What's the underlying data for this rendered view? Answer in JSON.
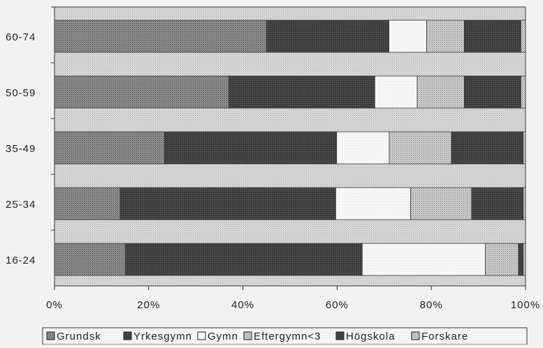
{
  "chart_data": {
    "type": "bar",
    "orientation": "horizontal",
    "stacked": "percent",
    "categories": [
      "60-74",
      "50-59",
      "35-49",
      "25-34",
      "16-24"
    ],
    "series": [
      {
        "name": "Grundsk",
        "values": [
          45,
          37,
          23,
          14,
          15
        ],
        "color": "#7a7a7a",
        "pattern": "dots-dense"
      },
      {
        "name": "Yrkesgymn",
        "values": [
          26,
          31,
          36,
          46,
          50
        ],
        "color": "#4a4a4a",
        "pattern": "dark"
      },
      {
        "name": "Gymn",
        "values": [
          8,
          9,
          11,
          16,
          26
        ],
        "color": "#f7f7f7",
        "pattern": "light"
      },
      {
        "name": "Eftergymn<3",
        "values": [
          8,
          10,
          13,
          13,
          7
        ],
        "color": "#bdbdbd",
        "pattern": "dots-light"
      },
      {
        "name": "Högskola",
        "values": [
          12,
          12,
          15,
          11,
          1
        ],
        "color": "#3a3a3a",
        "pattern": "dark"
      },
      {
        "name": "Forskare",
        "values": [
          1,
          1,
          0.5,
          0.5,
          0.5
        ],
        "color": "#cfcfcf",
        "pattern": "dots-light"
      }
    ],
    "x_ticks": [
      "0%",
      "20%",
      "40%",
      "60%",
      "80%",
      "100%"
    ],
    "xlim": [
      0,
      100
    ],
    "legend_position": "bottom",
    "grid": false,
    "title": "",
    "xlabel": "",
    "ylabel": ""
  }
}
